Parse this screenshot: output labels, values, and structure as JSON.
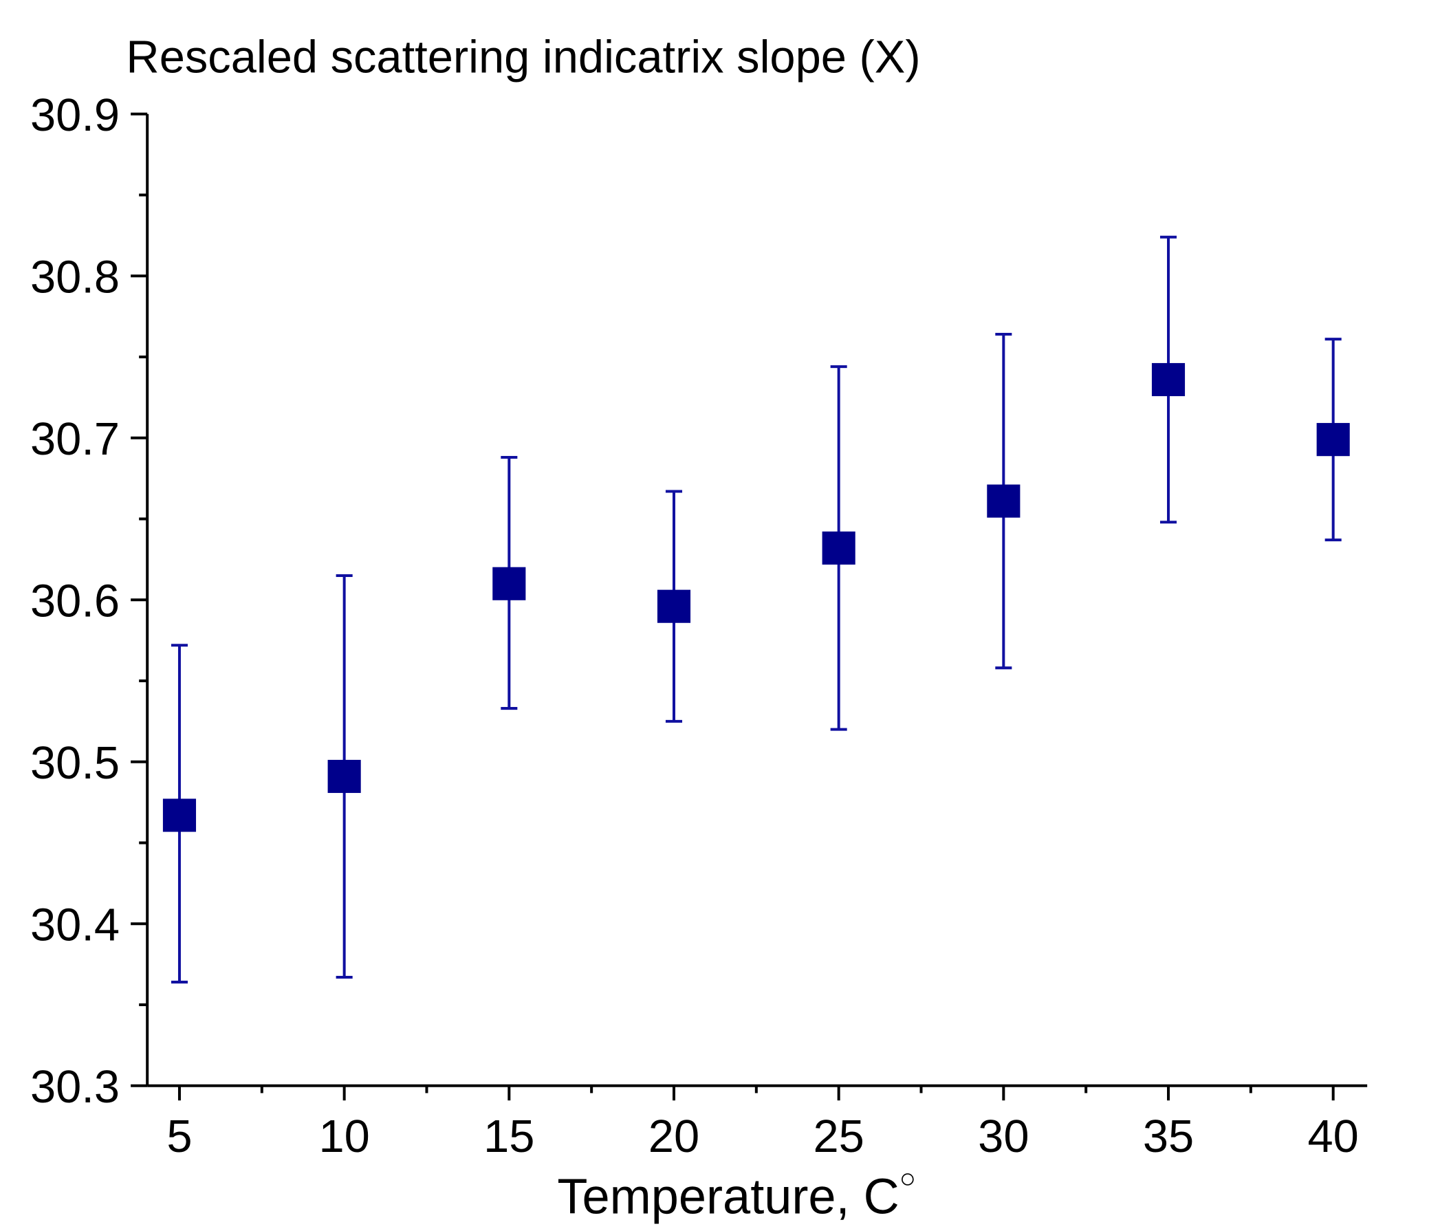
{
  "chart_data": {
    "type": "scatter",
    "title": "Rescaled scattering indicatrix slope (X)",
    "xlabel": "Temperature, C°",
    "xlabel_main": "Temperature, C",
    "xlabel_degree": "○",
    "ylabel": "",
    "xlim": [
      3,
      42
    ],
    "ylim": [
      30.3,
      30.9
    ],
    "x_ticks": [
      5,
      10,
      15,
      20,
      25,
      30,
      35,
      40
    ],
    "x_tick_labels": [
      "5",
      "10",
      "15",
      "20",
      "25",
      "30",
      "35",
      "40"
    ],
    "y_ticks": [
      30.3,
      30.4,
      30.5,
      30.6,
      30.7,
      30.8,
      30.9
    ],
    "y_tick_labels": [
      "30.3",
      "30.4",
      "30.5",
      "30.6",
      "30.7",
      "30.8",
      "30.9"
    ],
    "grid": false,
    "series": [
      {
        "name": "X",
        "marker": "square",
        "color": "#00008b",
        "errorbar_color": "#1010a0",
        "x": [
          5,
          10,
          15,
          20,
          25,
          30,
          35,
          40
        ],
        "y": [
          30.467,
          30.491,
          30.61,
          30.596,
          30.632,
          30.661,
          30.736,
          30.699
        ],
        "y_upper": [
          30.572,
          30.615,
          30.688,
          30.667,
          30.744,
          30.764,
          30.824,
          30.761
        ],
        "y_lower": [
          30.364,
          30.367,
          30.533,
          30.525,
          30.52,
          30.558,
          30.648,
          30.637
        ]
      }
    ]
  }
}
